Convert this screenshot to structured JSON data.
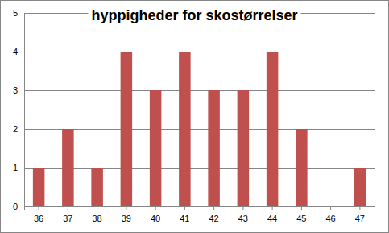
{
  "chart_data": {
    "type": "bar",
    "title": "hyppigheder for skostørrelser",
    "categories": [
      "36",
      "37",
      "38",
      "39",
      "40",
      "41",
      "42",
      "43",
      "44",
      "45",
      "46",
      "47"
    ],
    "values": [
      1,
      2,
      1,
      4,
      3,
      4,
      3,
      3,
      4,
      2,
      0,
      1
    ],
    "color": "#c0504d",
    "ylim": [
      0,
      5
    ],
    "yticks": [
      0,
      1,
      2,
      3,
      4,
      5
    ],
    "grid": true
  }
}
